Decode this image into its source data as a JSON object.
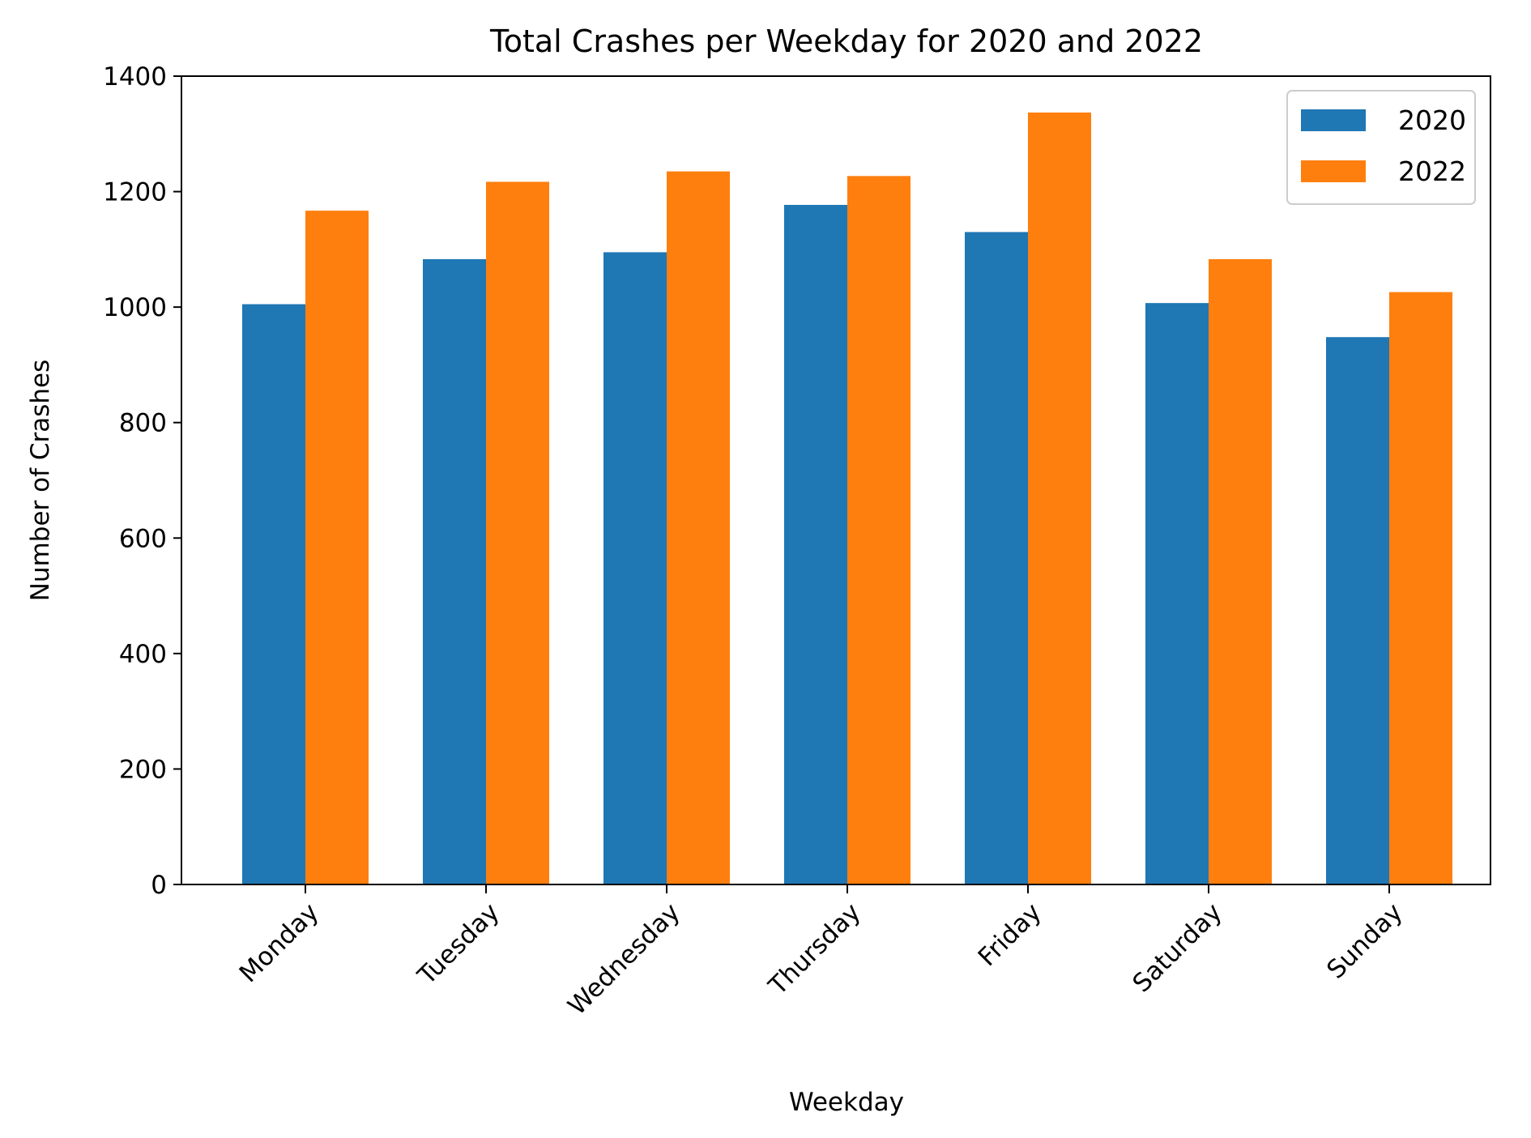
{
  "chart_data": {
    "type": "bar",
    "title": "Total Crashes per Weekday for 2020 and 2022",
    "xlabel": "Weekday",
    "ylabel": "Number of Crashes",
    "categories": [
      "Monday",
      "Tuesday",
      "Wednesday",
      "Thursday",
      "Friday",
      "Saturday",
      "Sunday"
    ],
    "series": [
      {
        "name": "2020",
        "color": "#1f77b4",
        "values": [
          1005,
          1083,
          1095,
          1177,
          1130,
          1007,
          948
        ]
      },
      {
        "name": "2022",
        "color": "#ff7f0e",
        "values": [
          1167,
          1217,
          1235,
          1227,
          1337,
          1083,
          1026
        ]
      }
    ],
    "ylim": [
      0,
      1400
    ],
    "yticks": [
      "0",
      "200",
      "400",
      "600",
      "800",
      "1000",
      "1200",
      "1400"
    ],
    "grid": false,
    "legend_position": "top-right"
  }
}
